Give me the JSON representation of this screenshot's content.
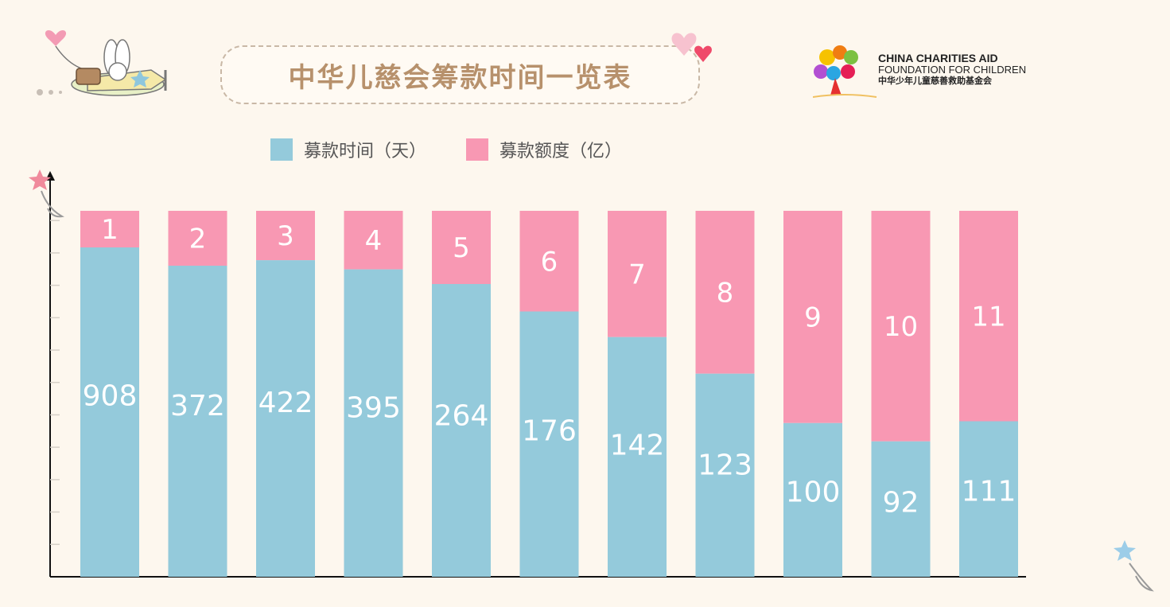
{
  "title": "中华儿慈会筹款时间一览表",
  "logo": {
    "line1": "CHINA CHARITIES AID",
    "line2": "FOUNDATION FOR CHILDREN",
    "line3": "中华少年儿童慈善救助基金会"
  },
  "colors": {
    "days": "#94cadb",
    "amount": "#f898b3",
    "background": "#fdf7ee",
    "title": "#b7916c"
  },
  "chart_data": {
    "type": "bar",
    "stacked": true,
    "normalized": true,
    "legend_position": "top",
    "grid": false,
    "series": [
      {
        "name": "募款时间（天）",
        "values": [
          908,
          372,
          422,
          395,
          264,
          176,
          142,
          123,
          100,
          92,
          111
        ]
      },
      {
        "name": "募款额度（亿）",
        "values": [
          1,
          2,
          3,
          4,
          5,
          6,
          7,
          8,
          9,
          10,
          11
        ]
      }
    ],
    "fraction_days": [
      0.9,
      0.85,
      0.865,
      0.84,
      0.8,
      0.725,
      0.655,
      0.555,
      0.42,
      0.37,
      0.425
    ]
  }
}
